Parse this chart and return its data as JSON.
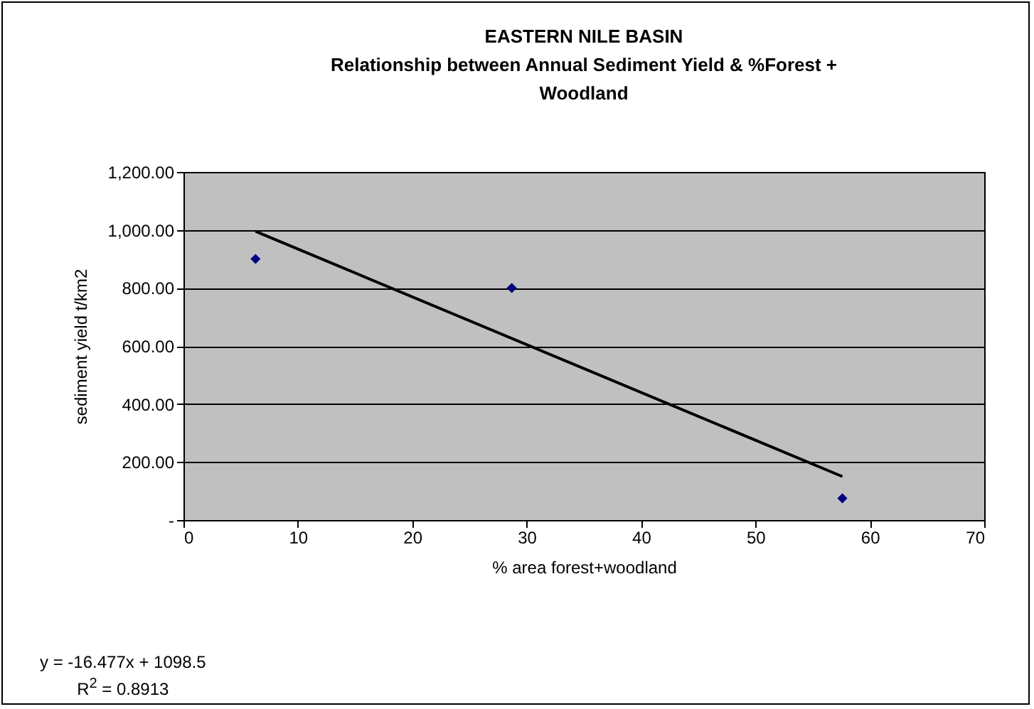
{
  "chart_data": {
    "type": "scatter",
    "title": "EASTERN NILE BASIN",
    "subtitle": "Relationship between Annual Sediment Yield & %Forest + Woodland",
    "xlabel": "% area forest+woodland",
    "ylabel": "sediment yield t/km2",
    "annotations": [
      "y = -16.477x + 1098.5",
      "R$^{2}$ = 0.8913"
    ],
    "series": [
      {
        "color": "#000080",
        "marker": "diamond",
        "x": [
          6.3,
          28.7,
          57.6
        ],
        "values": [
          900,
          800,
          75
        ]
      },
      {
        "type": "line",
        "color": "#000000",
        "x": [
          6.3,
          57.6
        ],
        "values": [
          995,
          150
        ]
      }
    ],
    "xlim": [
      0,
      70
    ],
    "xticks": [
      0,
      10,
      20,
      30,
      40,
      50,
      60,
      70
    ],
    "ylim": [
      0,
      1200
    ],
    "yticks": [
      {
        "value": 0,
        "label": "-"
      },
      {
        "value": 200,
        "label": "200.00"
      },
      {
        "value": 400,
        "label": "400.00"
      },
      {
        "value": 600,
        "label": "600.00"
      },
      {
        "value": 800,
        "label": "800.00"
      },
      {
        "value": 1000,
        "label": "1,000.00"
      },
      {
        "value": 1200,
        "label": "1,200.00"
      }
    ],
    "grid": "y"
  }
}
